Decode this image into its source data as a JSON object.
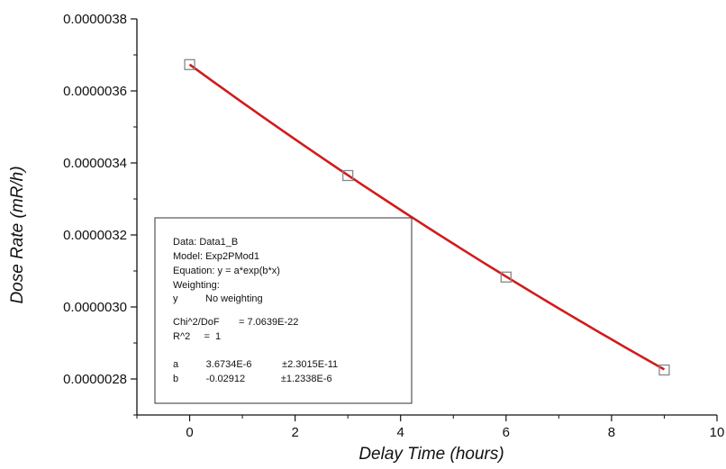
{
  "chart_data": {
    "type": "scatter",
    "xlabel": "Delay Time (hours)",
    "ylabel": "Dose Rate (mR/h)",
    "xlim": [
      -1,
      10
    ],
    "ylim": [
      2.7e-06,
      3.8e-06
    ],
    "x_ticks": [
      0,
      2,
      4,
      6,
      8,
      10
    ],
    "x_tick_labels": [
      "0",
      "2",
      "4",
      "6",
      "8",
      "10"
    ],
    "y_ticks": [
      2.8e-06,
      3e-06,
      3.2e-06,
      3.4e-06,
      3.6e-06,
      3.8e-06
    ],
    "y_tick_labels": [
      "0.0000028",
      "0.0000030",
      "0.0000032",
      "0.0000034",
      "0.0000036",
      "0.0000038"
    ],
    "grid": false,
    "points": {
      "x": [
        0,
        3,
        6,
        9
      ],
      "y": [
        3.673e-06,
        3.365e-06,
        3.083e-06,
        2.825e-06
      ],
      "marker": "open-square",
      "color": "#888888"
    },
    "fit": {
      "model": "exponential",
      "a": 3.6734e-06,
      "b": -0.02912,
      "x_range": [
        0,
        9
      ],
      "color": "#d01c1c"
    },
    "fit_box": {
      "lines": [
        "Data: Data1_B",
        "Model: Exp2PMod1",
        "Equation: y = a*exp(b*x)",
        "Weighting:",
        "y          No weighting",
        "",
        "Chi^2/DoF       = 7.0639E-22",
        "R^2     =  1",
        "",
        "a          3.6734E-6           ±2.3015E-11",
        "b          -0.02912             ±1.2338E-6"
      ]
    }
  }
}
